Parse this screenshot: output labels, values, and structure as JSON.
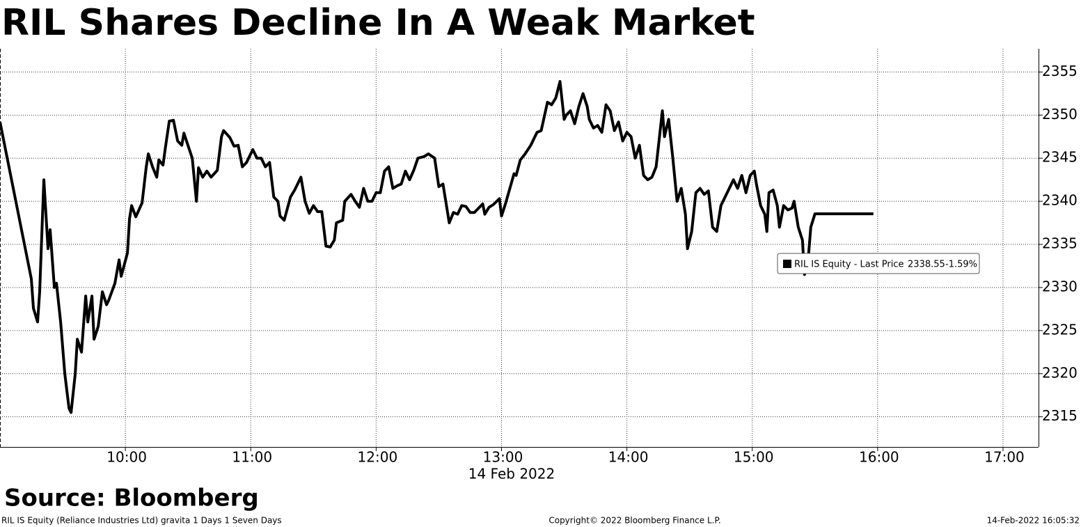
{
  "chart_data": {
    "type": "line",
    "title": "RIL Shares Decline In A Weak Market",
    "x_label": "14 Feb 2022",
    "source": "Source: Bloomberg",
    "footer_left": "RIL IS Equity (Reliance Industries Ltd) gravita 1 Days 1 Seven Days",
    "footer_center": "Copyright© 2022 Bloomberg Finance L.P.",
    "footer_right": "14-Feb-2022 16:05:32",
    "legend_last": "2338.55",
    "legend_change": "-1.59%",
    "xlim": [
      "09:00",
      "17:17"
    ],
    "xticks": [
      "10:00",
      "11:00",
      "12:00",
      "13:00",
      "14:00",
      "15:00",
      "16:00",
      "17:00"
    ],
    "ylim": [
      2311.5,
      2357.7
    ],
    "yticks": [
      2315,
      2320,
      2325,
      2330,
      2335,
      2340,
      2345,
      2350,
      2355
    ],
    "grid": true,
    "x": [
      "09:00",
      "09:15",
      "09:16",
      "09:18",
      "09:19",
      "09:21",
      "09:23",
      "09:24",
      "09:26",
      "09:27",
      "09:29",
      "09:31",
      "09:33",
      "09:34",
      "09:36",
      "09:37",
      "09:39",
      "09:41",
      "09:42",
      "09:44",
      "09:45",
      "09:47",
      "09:49",
      "09:51",
      "09:52",
      "09:55",
      "09:57",
      "09:58",
      "10:01",
      "10:02",
      "10:03",
      "10:05",
      "10:08",
      "10:10",
      "10:11",
      "10:13",
      "10:15",
      "10:16",
      "10:18",
      "10:19",
      "10:21",
      "10:23",
      "10:25",
      "10:27",
      "10:28",
      "10:32",
      "10:34",
      "10:35",
      "10:37",
      "10:39",
      "10:41",
      "10:44",
      "10:46",
      "10:47",
      "10:50",
      "10:52",
      "10:54",
      "10:56",
      "10:58",
      "11:01",
      "11:03",
      "11:05",
      "11:07",
      "11:09",
      "11:11",
      "11:13",
      "11:14",
      "11:16",
      "11:19",
      "11:21",
      "11:23",
      "11:24",
      "11:26",
      "11:28",
      "11:30",
      "11:32",
      "11:34",
      "11:36",
      "11:38",
      "11:40",
      "11:41",
      "11:44",
      "11:45",
      "11:48",
      "11:50",
      "11:52",
      "11:54",
      "11:56",
      "11:58",
      "12:00",
      "12:02",
      "12:04",
      "12:06",
      "12:08",
      "12:10",
      "12:12",
      "12:14",
      "12:16",
      "12:18",
      "12:20",
      "12:23",
      "12:25",
      "12:28",
      "12:30",
      "12:32",
      "12:35",
      "12:37",
      "12:39",
      "12:41",
      "12:43",
      "12:45",
      "12:47",
      "12:49",
      "12:51",
      "12:52",
      "12:54",
      "12:56",
      "12:59",
      "13:00",
      "13:02",
      "13:04",
      "13:06",
      "13:07",
      "13:09",
      "13:11",
      "13:14",
      "13:17",
      "13:19",
      "13:22",
      "13:24",
      "13:26",
      "13:28",
      "13:30",
      "13:31",
      "13:33",
      "13:35",
      "13:37",
      "13:39",
      "13:41",
      "13:42",
      "13:44",
      "13:46",
      "13:48",
      "13:50",
      "13:52",
      "13:54",
      "13:56",
      "13:58",
      "14:00",
      "14:02",
      "14:04",
      "14:06",
      "14:08",
      "14:10",
      "14:12",
      "14:14",
      "14:17",
      "14:18",
      "14:20",
      "14:22",
      "14:24",
      "14:26",
      "14:28",
      "14:29",
      "14:31",
      "14:33",
      "14:35",
      "14:37",
      "14:39",
      "14:41",
      "14:43",
      "14:45",
      "14:47",
      "14:49",
      "14:51",
      "14:53",
      "14:55",
      "14:57",
      "14:59",
      "15:01",
      "15:02",
      "15:04",
      "15:06",
      "15:07",
      "15:08",
      "15:10",
      "15:12",
      "15:13",
      "15:15",
      "15:17",
      "15:19",
      "15:20",
      "15:22",
      "15:24",
      "15:25",
      "15:27",
      "15:28",
      "15:30",
      "15:58"
    ],
    "series": [
      {
        "name": "RIL IS Equity - Last Price",
        "color": "#000000",
        "values": [
          2349.2,
          2331,
          2327.6,
          2326,
          2329.5,
          2342.5,
          2334.5,
          2336.7,
          2330,
          2330.5,
          2326,
          2320,
          2316,
          2315.5,
          2320,
          2324,
          2322.5,
          2329,
          2326,
          2329,
          2324,
          2325.5,
          2329.5,
          2328,
          2328.5,
          2330.5,
          2333.2,
          2331.3,
          2334,
          2338,
          2339.5,
          2338.2,
          2339.8,
          2344,
          2345.5,
          2344,
          2342.8,
          2344.8,
          2344.2,
          2346,
          2349.3,
          2349.4,
          2347,
          2346.5,
          2347.9,
          2345,
          2340,
          2343.9,
          2342.8,
          2343.5,
          2342.8,
          2343.6,
          2347.5,
          2348.2,
          2347.4,
          2346.4,
          2346.5,
          2344,
          2344.5,
          2346,
          2345,
          2345,
          2344,
          2344.5,
          2340.5,
          2340,
          2338.3,
          2337.8,
          2340.5,
          2341.3,
          2342.3,
          2342.8,
          2340,
          2338.6,
          2339.5,
          2338.8,
          2338.8,
          2334.8,
          2334.7,
          2335.5,
          2337.5,
          2337.8,
          2340,
          2340.8,
          2340,
          2339.3,
          2341.5,
          2340,
          2340,
          2341,
          2341,
          2343.5,
          2344,
          2341.5,
          2341.8,
          2342,
          2343.5,
          2342.5,
          2343.6,
          2345,
          2345.2,
          2345.5,
          2345,
          2341.7,
          2342,
          2337.5,
          2338.7,
          2338.5,
          2339.5,
          2339.4,
          2338.7,
          2338.7,
          2339.2,
          2339.7,
          2338.5,
          2339.3,
          2339.6,
          2340.3,
          2338.3,
          2339.8,
          2341.5,
          2343.2,
          2343,
          2344.8,
          2345.4,
          2346.5,
          2348,
          2348.2,
          2351.5,
          2351.2,
          2352,
          2353.9,
          2349.5,
          2350,
          2350.5,
          2349,
          2351,
          2352.5,
          2351,
          2349.5,
          2348.5,
          2348.8,
          2348,
          2351.2,
          2350.5,
          2348.2,
          2349.2,
          2347,
          2348,
          2347.5,
          2345,
          2346.5,
          2343,
          2342.5,
          2342.8,
          2344,
          2350.5,
          2347.5,
          2349.5,
          2345,
          2340,
          2341.5,
          2338.5,
          2334.5,
          2336.5,
          2341,
          2341.5,
          2340.8,
          2341.2,
          2337,
          2336.5,
          2339.5,
          2340.5,
          2341.5,
          2342.5,
          2341.5,
          2343,
          2341,
          2343,
          2343.5,
          2342,
          2339.5,
          2338.5,
          2336.5,
          2341,
          2341.3,
          2339.5,
          2337,
          2339.5,
          2339,
          2339.2,
          2340,
          2337,
          2335.5,
          2331.5,
          2334,
          2337,
          2338.55,
          2338.55
        ]
      }
    ]
  }
}
